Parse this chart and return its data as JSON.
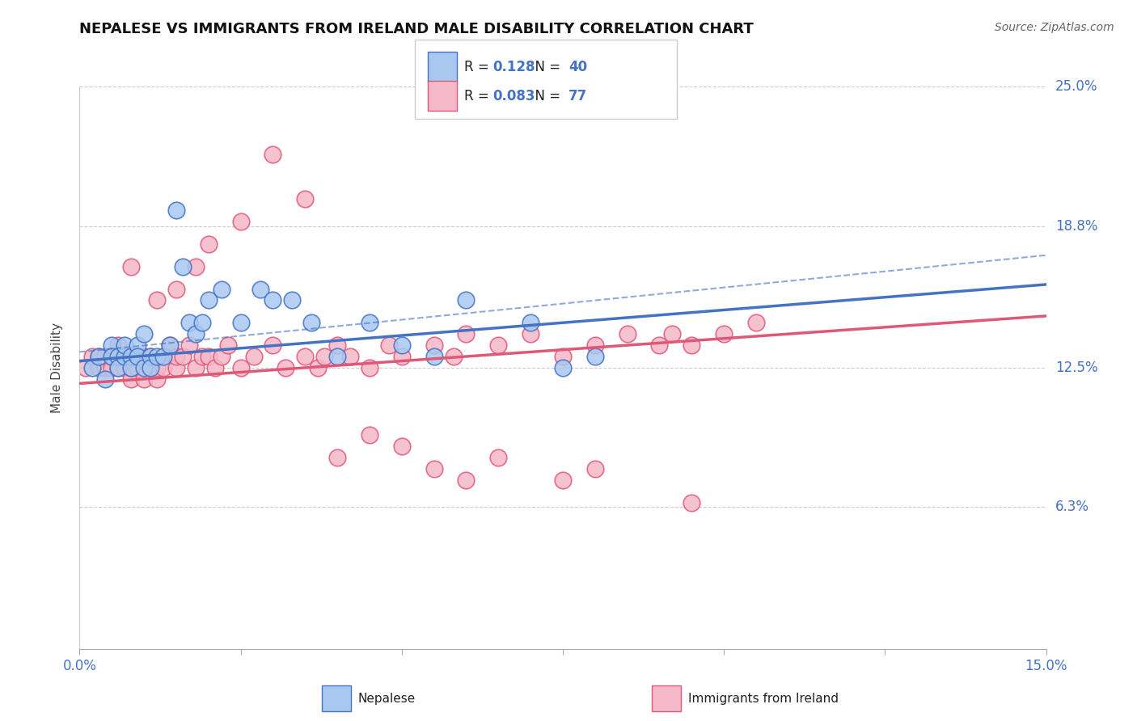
{
  "title": "NEPALESE VS IMMIGRANTS FROM IRELAND MALE DISABILITY CORRELATION CHART",
  "source": "Source: ZipAtlas.com",
  "ylabel": "Male Disability",
  "legend_label1": "Nepalese",
  "legend_label2": "Immigrants from Ireland",
  "R1": 0.128,
  "N1": 40,
  "R2": 0.083,
  "N2": 77,
  "xlim": [
    0.0,
    0.15
  ],
  "ylim": [
    0.0,
    0.25
  ],
  "yticks": [
    0.063,
    0.125,
    0.188,
    0.25
  ],
  "ytick_labels": [
    "6.3%",
    "12.5%",
    "18.8%",
    "25.0%"
  ],
  "xticks": [
    0.0,
    0.025,
    0.05,
    0.075,
    0.1,
    0.125,
    0.15
  ],
  "xtick_labels": [
    "0.0%",
    "",
    "",
    "",
    "",
    "",
    "15.0%"
  ],
  "color_blue_fill": "#a8c8f0",
  "color_pink_fill": "#f5b8c8",
  "color_blue_line": "#4472c4",
  "color_pink_line": "#e05878",
  "color_axis_text": "#4472c4",
  "background_color": "#ffffff",
  "grid_color": "#cccccc",
  "nepalese_x": [
    0.002,
    0.003,
    0.004,
    0.005,
    0.005,
    0.006,
    0.006,
    0.007,
    0.007,
    0.008,
    0.008,
    0.009,
    0.009,
    0.01,
    0.01,
    0.011,
    0.011,
    0.012,
    0.013,
    0.014,
    0.015,
    0.016,
    0.017,
    0.018,
    0.019,
    0.02,
    0.022,
    0.025,
    0.028,
    0.03,
    0.033,
    0.036,
    0.04,
    0.045,
    0.05,
    0.055,
    0.06,
    0.07,
    0.08,
    0.075
  ],
  "nepalese_y": [
    0.125,
    0.13,
    0.12,
    0.135,
    0.13,
    0.13,
    0.125,
    0.13,
    0.135,
    0.13,
    0.125,
    0.135,
    0.13,
    0.125,
    0.14,
    0.13,
    0.125,
    0.13,
    0.13,
    0.135,
    0.195,
    0.17,
    0.145,
    0.14,
    0.145,
    0.155,
    0.16,
    0.145,
    0.16,
    0.155,
    0.155,
    0.145,
    0.13,
    0.145,
    0.135,
    0.13,
    0.155,
    0.145,
    0.13,
    0.125
  ],
  "ireland_x": [
    0.001,
    0.002,
    0.003,
    0.003,
    0.004,
    0.004,
    0.005,
    0.005,
    0.006,
    0.006,
    0.007,
    0.007,
    0.008,
    0.008,
    0.009,
    0.009,
    0.01,
    0.01,
    0.011,
    0.011,
    0.012,
    0.012,
    0.013,
    0.013,
    0.014,
    0.015,
    0.015,
    0.016,
    0.017,
    0.018,
    0.019,
    0.02,
    0.021,
    0.022,
    0.023,
    0.025,
    0.027,
    0.03,
    0.032,
    0.035,
    0.037,
    0.038,
    0.04,
    0.042,
    0.045,
    0.048,
    0.05,
    0.055,
    0.058,
    0.06,
    0.065,
    0.07,
    0.075,
    0.08,
    0.085,
    0.09,
    0.092,
    0.095,
    0.1,
    0.105,
    0.008,
    0.012,
    0.015,
    0.018,
    0.02,
    0.025,
    0.03,
    0.035,
    0.04,
    0.045,
    0.05,
    0.055,
    0.06,
    0.065,
    0.075,
    0.08,
    0.095
  ],
  "ireland_y": [
    0.125,
    0.13,
    0.125,
    0.13,
    0.125,
    0.13,
    0.125,
    0.13,
    0.125,
    0.135,
    0.125,
    0.13,
    0.12,
    0.125,
    0.13,
    0.125,
    0.13,
    0.12,
    0.13,
    0.125,
    0.12,
    0.125,
    0.13,
    0.125,
    0.135,
    0.125,
    0.13,
    0.13,
    0.135,
    0.125,
    0.13,
    0.13,
    0.125,
    0.13,
    0.135,
    0.125,
    0.13,
    0.135,
    0.125,
    0.13,
    0.125,
    0.13,
    0.135,
    0.13,
    0.125,
    0.135,
    0.13,
    0.135,
    0.13,
    0.14,
    0.135,
    0.14,
    0.13,
    0.135,
    0.14,
    0.135,
    0.14,
    0.135,
    0.14,
    0.145,
    0.17,
    0.155,
    0.16,
    0.17,
    0.18,
    0.19,
    0.22,
    0.2,
    0.085,
    0.095,
    0.09,
    0.08,
    0.075,
    0.085,
    0.075,
    0.08,
    0.065
  ],
  "trend_blue_x0": 0.0,
  "trend_blue_y0": 0.128,
  "trend_blue_x1": 0.15,
  "trend_blue_y1": 0.162,
  "trend_pink_x0": 0.0,
  "trend_pink_y0": 0.118,
  "trend_pink_x1": 0.15,
  "trend_pink_y1": 0.148,
  "trend_blue_ci_x0": 0.0,
  "trend_blue_ci_y0": 0.132,
  "trend_blue_ci_x1": 0.15,
  "trend_blue_ci_y1": 0.175
}
